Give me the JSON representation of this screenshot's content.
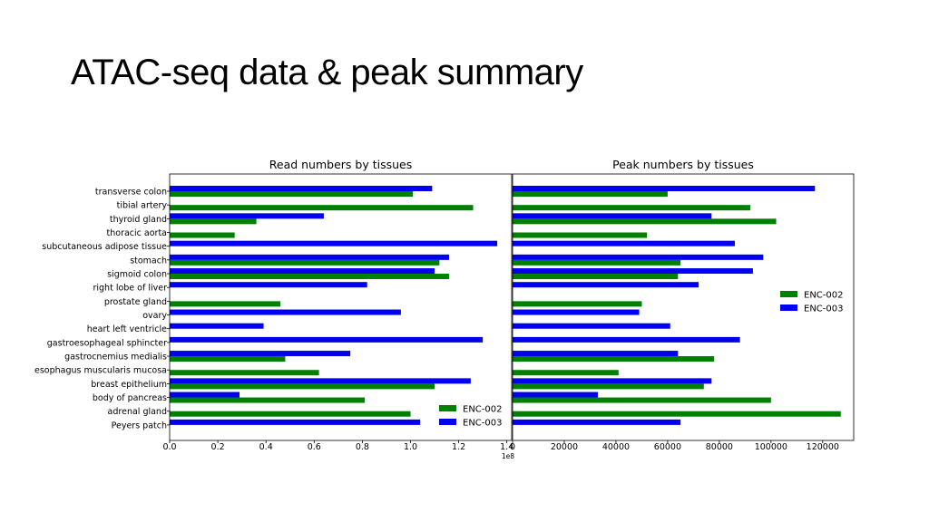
{
  "slide": {
    "title": "ATAC-seq data & peak summary"
  },
  "colors": {
    "ENC-002": "#008000",
    "ENC-003": "#0000ee"
  },
  "chart_data": [
    {
      "type": "bar",
      "orientation": "horizontal",
      "title": "Read numbers by tissues",
      "xlabel": "",
      "ylabel": "",
      "xlim": [
        0,
        1.42
      ],
      "x_ticks": [
        "0.0",
        "0.2",
        "0.4",
        "0.6",
        "0.8",
        "1.0",
        "1.2",
        "1.4"
      ],
      "x_scale_label": "1e8",
      "grid": false,
      "legend_position": "lower-right",
      "categories": [
        "transverse colon",
        "tibial artery",
        "thyroid gland",
        "thoracic aorta",
        "subcutaneous adipose tissue",
        "stomach",
        "sigmoid colon",
        "right lobe of liver",
        "prostate gland",
        "ovary",
        "heart left ventricle",
        "gastroesophageal sphincter",
        "gastrocnemius medialis",
        "esophagus muscularis mucosa",
        "breast epithelium",
        "body of pancreas",
        "adrenal gland",
        "Peyers patch"
      ],
      "series": [
        {
          "name": "ENC-002",
          "values": [
            1.01,
            1.26,
            0.36,
            0.27,
            null,
            1.12,
            1.16,
            null,
            0.46,
            null,
            null,
            null,
            0.48,
            0.62,
            1.1,
            0.81,
            1.0,
            null
          ]
        },
        {
          "name": "ENC-003",
          "values": [
            1.09,
            null,
            0.64,
            null,
            1.36,
            1.16,
            1.1,
            0.82,
            null,
            0.96,
            0.39,
            1.3,
            0.75,
            null,
            1.25,
            0.29,
            null,
            1.04
          ]
        }
      ]
    },
    {
      "type": "bar",
      "orientation": "horizontal",
      "title": "Peak numbers by tissues",
      "xlabel": "",
      "ylabel": "",
      "xlim": [
        0,
        132000
      ],
      "x_ticks": [
        "0",
        "20000",
        "40000",
        "60000",
        "80000",
        "100000",
        "120000"
      ],
      "grid": false,
      "legend_position": "center-right",
      "categories": [
        "transverse colon",
        "tibial artery",
        "thyroid gland",
        "thoracic aorta",
        "subcutaneous adipose tissue",
        "stomach",
        "sigmoid colon",
        "right lobe of liver",
        "prostate gland",
        "ovary",
        "heart left ventricle",
        "gastroesophageal sphincter",
        "gastrocnemius medialis",
        "esophagus muscularis mucosa",
        "breast epithelium",
        "body of pancreas",
        "adrenal gland",
        "Peyers patch"
      ],
      "series": [
        {
          "name": "ENC-002",
          "values": [
            60000,
            92000,
            102000,
            52000,
            null,
            65000,
            64000,
            null,
            50000,
            null,
            null,
            null,
            78000,
            41000,
            74000,
            100000,
            127000,
            null
          ]
        },
        {
          "name": "ENC-003",
          "values": [
            117000,
            null,
            77000,
            null,
            86000,
            97000,
            93000,
            72000,
            null,
            49000,
            61000,
            88000,
            64000,
            null,
            77000,
            33000,
            null,
            65000
          ]
        }
      ]
    }
  ]
}
